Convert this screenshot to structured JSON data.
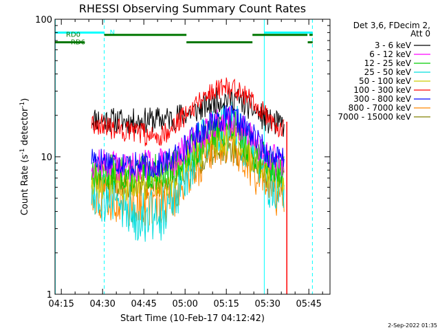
{
  "chart_data": {
    "type": "line",
    "title": "RHESSI Observing Summary Count Rates",
    "xlabel": "Start Time (10-Feb-17 04:12:42)",
    "ylabel_main": "Count Rate (s",
    "ylabel_sup": "-1",
    "ylabel_mid": " detector",
    "ylabel_end": ")",
    "yscale": "log",
    "ylim": [
      1,
      100
    ],
    "xlim_minutes": [
      252.7,
      352.7
    ],
    "x_ticks": [
      {
        "label": "04:15",
        "min": 255
      },
      {
        "label": "04:30",
        "min": 270
      },
      {
        "label": "04:45",
        "min": 285
      },
      {
        "label": "05:00",
        "min": 300
      },
      {
        "label": "05:15",
        "min": 315
      },
      {
        "label": "05:30",
        "min": 330
      },
      {
        "label": "05:45",
        "min": 345
      }
    ],
    "y_ticks": [
      {
        "label": "100",
        "value": 100
      },
      {
        "label": "10",
        "value": 10
      },
      {
        "label": "1",
        "value": 1
      }
    ],
    "legend_header": [
      "Det 3,6, FDecim 2,",
      "Att 0"
    ],
    "series": [
      {
        "name": "3 - 6 keV",
        "color": "#000000",
        "seed": 11,
        "noise": 0.1,
        "data": [
          [
            265,
            19
          ],
          [
            280,
            18
          ],
          [
            295,
            19
          ],
          [
            305,
            22
          ],
          [
            312,
            26
          ],
          [
            318,
            27
          ],
          [
            325,
            22
          ],
          [
            330,
            18
          ],
          [
            335,
            17
          ]
        ]
      },
      {
        "name": "6 - 12 keV",
        "color": "#ff00ff",
        "seed": 12,
        "noise": 0.12,
        "data": [
          [
            265,
            9
          ],
          [
            280,
            8.5
          ],
          [
            295,
            9
          ],
          [
            305,
            14
          ],
          [
            312,
            18
          ],
          [
            318,
            18
          ],
          [
            325,
            13
          ],
          [
            330,
            10
          ],
          [
            335,
            9
          ]
        ]
      },
      {
        "name": "12 - 25 keV",
        "color": "#00cc00",
        "seed": 13,
        "noise": 0.14,
        "data": [
          [
            265,
            8
          ],
          [
            280,
            7.5
          ],
          [
            295,
            8
          ],
          [
            305,
            12
          ],
          [
            312,
            16
          ],
          [
            318,
            16
          ],
          [
            325,
            11
          ],
          [
            330,
            9
          ],
          [
            335,
            8
          ]
        ]
      },
      {
        "name": "25 - 50 keV",
        "color": "#00dddd",
        "seed": 14,
        "noise": 0.22,
        "data": [
          [
            265,
            6
          ],
          [
            280,
            4
          ],
          [
            290,
            3.8
          ],
          [
            295,
            4.5
          ],
          [
            305,
            12
          ],
          [
            312,
            17
          ],
          [
            318,
            17
          ],
          [
            325,
            10
          ],
          [
            330,
            7
          ],
          [
            335,
            6
          ]
        ]
      },
      {
        "name": "50 - 100 keV",
        "color": "#cccc00",
        "seed": 15,
        "noise": 0.15,
        "data": [
          [
            265,
            7
          ],
          [
            280,
            6.5
          ],
          [
            295,
            7
          ],
          [
            305,
            11
          ],
          [
            312,
            14
          ],
          [
            318,
            14
          ],
          [
            325,
            10
          ],
          [
            330,
            8
          ],
          [
            335,
            7
          ]
        ]
      },
      {
        "name": "100 - 300 keV",
        "color": "#ff0000",
        "seed": 16,
        "noise": 0.09,
        "data": [
          [
            265,
            18
          ],
          [
            280,
            15
          ],
          [
            290,
            14
          ],
          [
            295,
            16
          ],
          [
            305,
            26
          ],
          [
            312,
            32
          ],
          [
            318,
            32
          ],
          [
            325,
            26
          ],
          [
            330,
            19
          ],
          [
            335,
            16
          ]
        ]
      },
      {
        "name": "300 - 800 keV",
        "color": "#0000ff",
        "seed": 17,
        "noise": 0.1,
        "data": [
          [
            265,
            10
          ],
          [
            280,
            8.8
          ],
          [
            290,
            8.5
          ],
          [
            295,
            9.5
          ],
          [
            305,
            15
          ],
          [
            312,
            19
          ],
          [
            318,
            19
          ],
          [
            325,
            14
          ],
          [
            330,
            10.5
          ],
          [
            335,
            9.5
          ]
        ]
      },
      {
        "name": "800 - 7000 keV",
        "color": "#ff8800",
        "seed": 18,
        "noise": 0.18,
        "data": [
          [
            265,
            5.5
          ],
          [
            280,
            4.6
          ],
          [
            290,
            4.5
          ],
          [
            295,
            5
          ],
          [
            305,
            9
          ],
          [
            312,
            13
          ],
          [
            318,
            12.5
          ],
          [
            325,
            8
          ],
          [
            330,
            6
          ],
          [
            335,
            5
          ]
        ]
      },
      {
        "name": "7000 - 15000 keV",
        "color": "#808000",
        "seed": 19,
        "noise": 0.1,
        "data": [
          [
            265,
            7
          ],
          [
            280,
            6
          ],
          [
            295,
            6.5
          ],
          [
            305,
            9
          ],
          [
            312,
            11
          ],
          [
            318,
            11
          ],
          [
            325,
            9
          ],
          [
            330,
            7
          ],
          [
            335,
            6.5
          ]
        ]
      }
    ],
    "data_start_min": 266.0,
    "data_end_min": 336.0,
    "decay_spike_min": 337.0,
    "vertical_lines": [
      {
        "kind": "solid",
        "color": "#00ffff",
        "min": 252.8
      },
      {
        "kind": "dashed",
        "color": "#00ffff",
        "min": 270.6
      },
      {
        "kind": "solid",
        "color": "#00ffff",
        "min": 328.8
      },
      {
        "kind": "dashed",
        "color": "#00ffff",
        "min": 346.3
      }
    ],
    "night_bars": {
      "label": "N",
      "color": "#00ffff",
      "value": 80,
      "segments": [
        [
          252.8,
          270.6
        ],
        [
          328.8,
          346.3
        ]
      ]
    },
    "rd_bars": [
      {
        "label": "RD0",
        "color": "#007700",
        "value": 77,
        "segments": [
          [
            270.6,
            300.5
          ],
          [
            324.5,
            344.5
          ],
          [
            345.2,
            346.4
          ]
        ]
      },
      {
        "label": "RD6",
        "color": "#007700",
        "value": 68,
        "segments": [
          [
            252.8,
            263.5
          ],
          [
            300.5,
            324.5
          ],
          [
            344.6,
            346.4
          ]
        ]
      }
    ],
    "timestamp": "2-Sep-2022 01:35"
  }
}
